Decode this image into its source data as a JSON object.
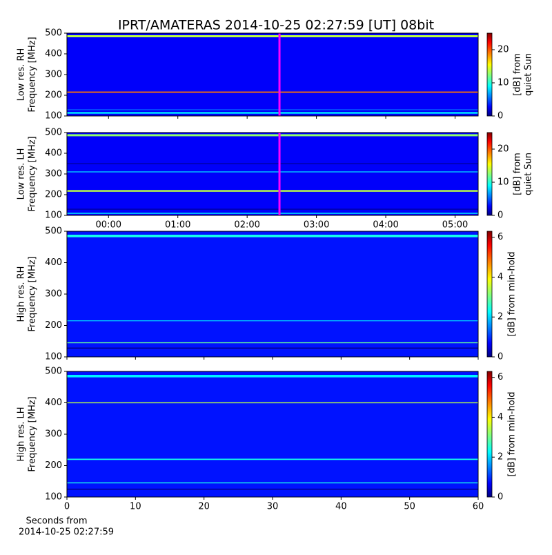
{
  "chart_data": {
    "type": "spectrogram",
    "colormap": "jet",
    "title": "IPRT/AMATERAS 2014-10-25 02:27:59 [UT]   08bit",
    "panels": [
      {
        "ylabel": [
          "Low res. RH",
          "Frequency [MHz]"
        ],
        "xlim": [
          -36,
          320
        ],
        "xticks": [
          {
            "value": 0,
            "label": "00:00"
          },
          {
            "value": 60,
            "label": "01:00"
          },
          {
            "value": 120,
            "label": "02:00"
          },
          {
            "value": 180,
            "label": "03:00"
          },
          {
            "value": 240,
            "label": "04:00"
          },
          {
            "value": 300,
            "label": "05:00"
          }
        ],
        "xtick_labels": false,
        "ylim": [
          100,
          500
        ],
        "yticks": [
          100,
          200,
          300,
          400,
          500
        ],
        "clim": [
          0,
          25
        ],
        "cticks": [
          0,
          10,
          20
        ],
        "clabel": [
          "[dB] from",
          "quiet Sun"
        ],
        "base": 3,
        "bands": [
          {
            "freq": 485,
            "width": 10,
            "value": 14
          },
          {
            "freq": 215,
            "width": 6,
            "value": 19
          },
          {
            "freq": 115,
            "width": 8,
            "value": 9
          },
          {
            "freq": 130,
            "width": 4,
            "value": 6
          }
        ],
        "marker": {
          "x": 148,
          "color": "#ff00ff"
        }
      },
      {
        "ylabel": [
          "Low res. LH",
          "Frequency [MHz]"
        ],
        "xlim": [
          -36,
          320
        ],
        "xticks": [
          {
            "value": 0,
            "label": "00:00"
          },
          {
            "value": 60,
            "label": "01:00"
          },
          {
            "value": 120,
            "label": "02:00"
          },
          {
            "value": 180,
            "label": "03:00"
          },
          {
            "value": 240,
            "label": "04:00"
          },
          {
            "value": 300,
            "label": "05:00"
          }
        ],
        "xtick_labels": true,
        "ylim": [
          100,
          500
        ],
        "yticks": [
          100,
          200,
          300,
          400,
          500
        ],
        "clim": [
          0,
          25
        ],
        "cticks": [
          0,
          10,
          20
        ],
        "clabel": [
          "[dB] from",
          "quiet Sun"
        ],
        "base": 3,
        "bands": [
          {
            "freq": 487,
            "width": 10,
            "value": 13
          },
          {
            "freq": 218,
            "width": 8,
            "value": 14
          },
          {
            "freq": 310,
            "width": 6,
            "value": 7
          },
          {
            "freq": 350,
            "width": 3,
            "value": 0
          },
          {
            "freq": 130,
            "width": 3,
            "value": 0
          },
          {
            "freq": 110,
            "width": 6,
            "value": 8
          }
        ],
        "marker": {
          "x": 148,
          "color": "#ff00ff"
        }
      },
      {
        "ylabel": [
          "High res. RH",
          "Frequency [MHz]"
        ],
        "xlim": [
          0,
          60
        ],
        "xticks": [
          0,
          10,
          20,
          30,
          40,
          50,
          60
        ],
        "xtick_labels": false,
        "ylim": [
          100,
          500
        ],
        "yticks": [
          100,
          200,
          300,
          400,
          500
        ],
        "clim": [
          0,
          6.3
        ],
        "cticks": [
          0,
          2,
          4,
          6
        ],
        "clabel": [
          "[dB] from min-hold"
        ],
        "base": 0.9,
        "bands": [
          {
            "freq": 485,
            "width": 8,
            "value": 2.5
          },
          {
            "freq": 215,
            "width": 3,
            "value": 2
          },
          {
            "freq": 145,
            "width": 3,
            "value": 3
          },
          {
            "freq": 128,
            "width": 3,
            "value": 0
          }
        ]
      },
      {
        "ylabel": [
          "High res. LH",
          "Frequency [MHz]"
        ],
        "xlim": [
          0,
          60
        ],
        "xticks": [
          0,
          10,
          20,
          30,
          40,
          50,
          60
        ],
        "xtick_labels": true,
        "ylim": [
          100,
          500
        ],
        "yticks": [
          100,
          200,
          300,
          400,
          500
        ],
        "clim": [
          0,
          6.3
        ],
        "cticks": [
          0,
          2,
          4,
          6
        ],
        "clabel": [
          "[dB] from min-hold"
        ],
        "base": 0.9,
        "bands": [
          {
            "freq": 485,
            "width": 8,
            "value": 2.3
          },
          {
            "freq": 400,
            "width": 3,
            "value": 3.5
          },
          {
            "freq": 220,
            "width": 4,
            "value": 2.5
          },
          {
            "freq": 145,
            "width": 3,
            "value": 2.5
          },
          {
            "freq": 125,
            "width": 3,
            "value": 0
          }
        ],
        "xlabel": [
          "Seconds from",
          "2014-10-25 02:27:59"
        ]
      }
    ]
  }
}
